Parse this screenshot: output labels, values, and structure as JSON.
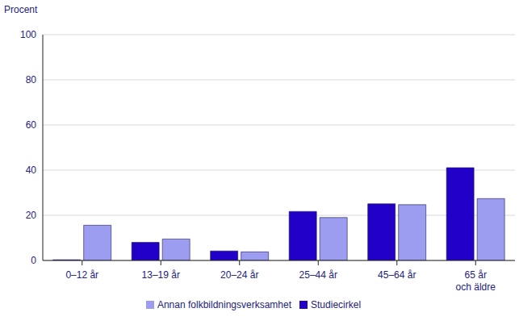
{
  "chart_data": {
    "type": "bar",
    "y_label": "Procent",
    "categories": [
      "0–12 år",
      "13–19 år",
      "20–24 år",
      "25–44 år",
      "45–64 år",
      "65 år och äldre"
    ],
    "series": [
      {
        "name": "Studiecirkel",
        "color": "#2200c8",
        "values": [
          0.3,
          8.0,
          4.2,
          21.7,
          25.1,
          41.1
        ]
      },
      {
        "name": "Annan folkbildningsverksamhet",
        "color": "#9c9cf0",
        "values": [
          15.6,
          9.5,
          3.8,
          19.0,
          24.7,
          27.4
        ]
      }
    ],
    "ylim": [
      0,
      100
    ],
    "yticks": [
      0,
      20,
      40,
      60,
      80,
      100
    ],
    "grid": true,
    "legend": "bottom"
  }
}
